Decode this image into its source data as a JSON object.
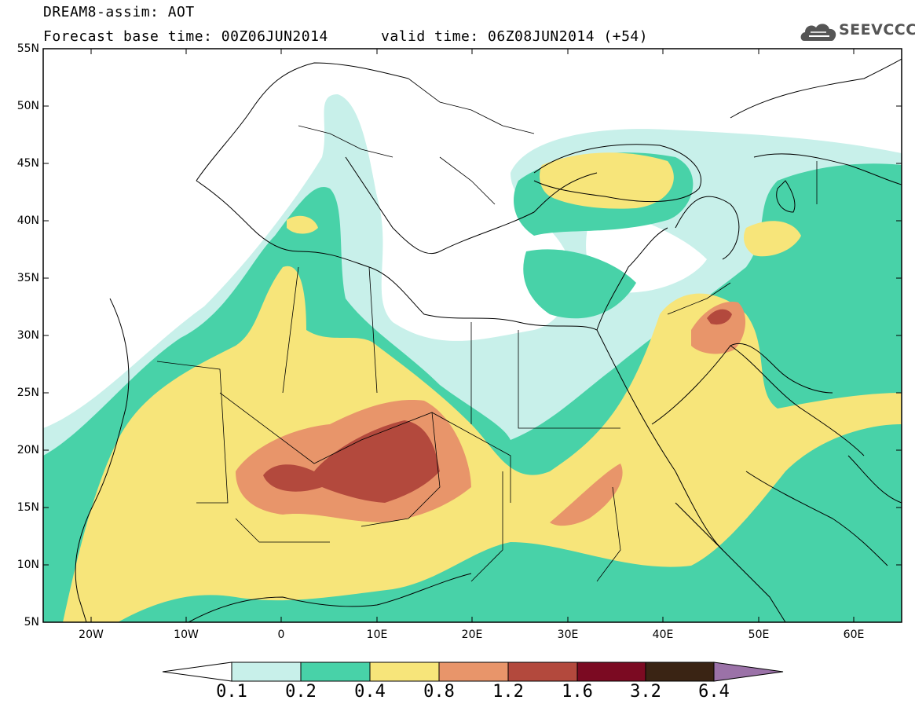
{
  "header": {
    "line1": "DREAM8-assim: AOT",
    "line2a": "Forecast base time: 00Z06JUN2014",
    "line2b": "valid time: 06Z08JUN2014 (+54)"
  },
  "logo": {
    "text": "SEEVCCC",
    "icon": "cloud-logo-icon",
    "color": "#555555"
  },
  "map": {
    "lat_labels": [
      "55N",
      "50N",
      "45N",
      "40N",
      "35N",
      "30N",
      "25N",
      "20N",
      "15N",
      "10N",
      "5N"
    ],
    "lon_labels": [
      "20W",
      "10W",
      "0",
      "10E",
      "20E",
      "30E",
      "40E",
      "50E",
      "60E"
    ],
    "lon_range": [
      -25,
      65
    ],
    "lat_range": [
      5,
      55
    ]
  },
  "colorbar": {
    "labels": [
      "0.1",
      "0.2",
      "0.4",
      "0.8",
      "1.2",
      "1.6",
      "3.2",
      "6.4"
    ],
    "colors": [
      "#ffffff",
      "#c8f0ea",
      "#48d2a8",
      "#f7e57a",
      "#e8956a",
      "#b3493d",
      "#7b0a22",
      "#3a2414",
      "#9b72a8"
    ]
  }
}
